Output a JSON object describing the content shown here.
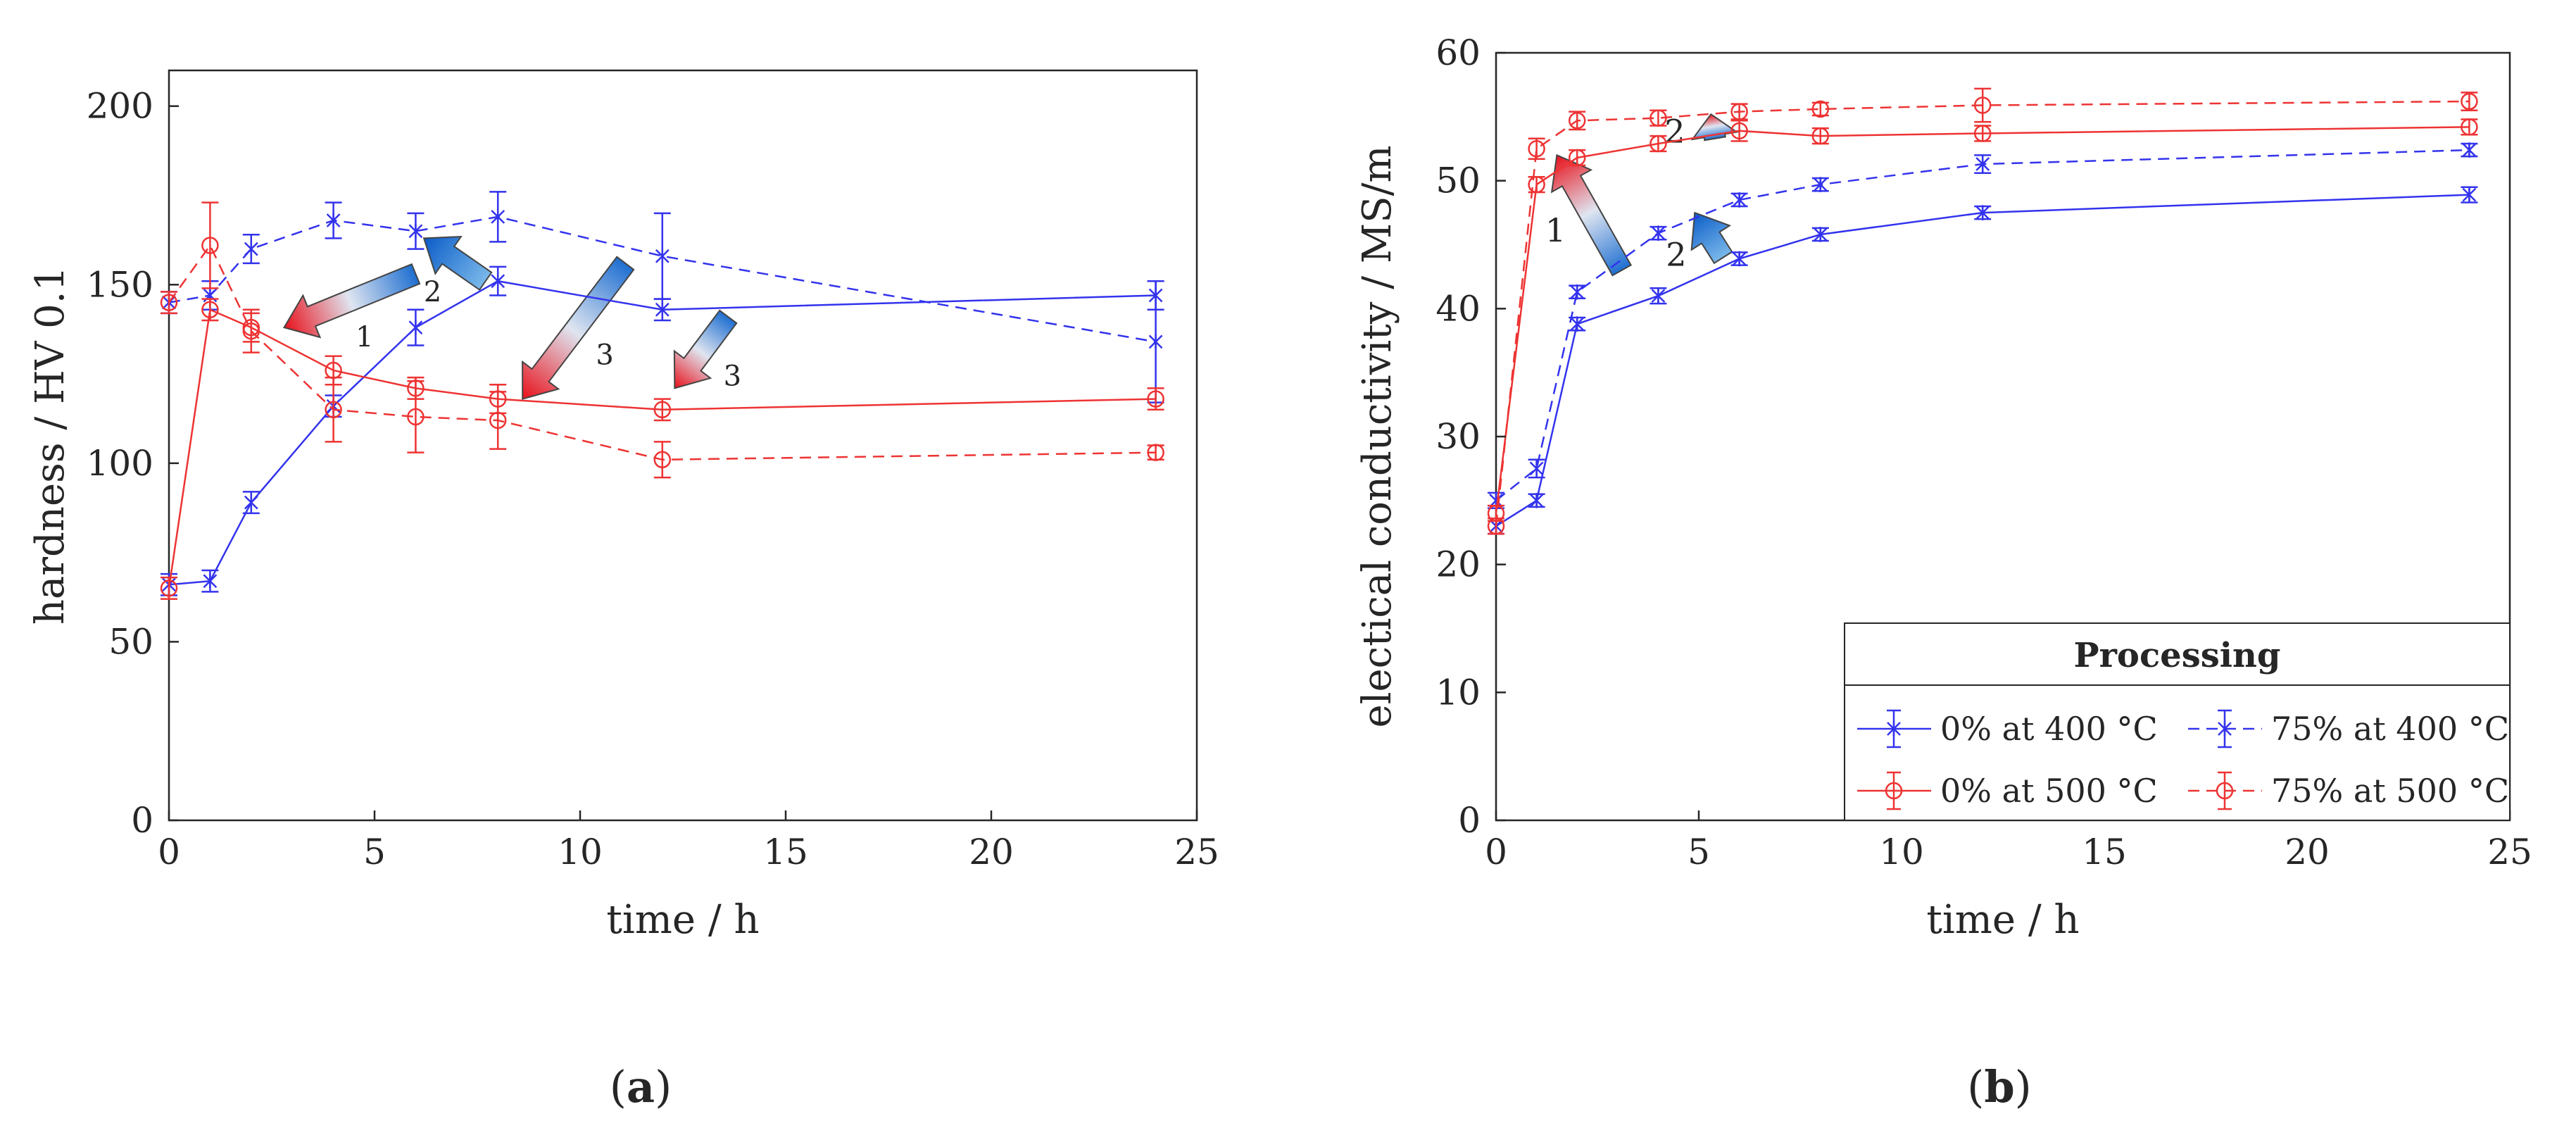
{
  "colors": {
    "blue": "#3333ee",
    "red": "#ee3333",
    "axis": "#262626"
  },
  "chart_data": [
    {
      "panel_label": "a",
      "type": "line",
      "xlabel": "time / h",
      "ylabel": "hardness / HV 0.1",
      "xlim": [
        0,
        25
      ],
      "ylim": [
        0,
        210
      ],
      "xticks": [
        0,
        5,
        10,
        15,
        20,
        25
      ],
      "yticks": [
        0,
        50,
        100,
        150,
        200
      ],
      "grid": false,
      "series": [
        {
          "name": "0% at 400 °C",
          "color": "blue",
          "dashed": false,
          "marker": "star",
          "x": [
            0,
            1,
            2,
            4,
            6,
            8,
            12,
            24
          ],
          "y": [
            66,
            67,
            89,
            116,
            138,
            151,
            143,
            147
          ],
          "err": [
            3,
            3,
            3,
            3,
            5,
            4,
            3,
            4
          ]
        },
        {
          "name": "75% at 400 °C",
          "color": "blue",
          "dashed": true,
          "marker": "star",
          "x": [
            0,
            1,
            2,
            4,
            6,
            8,
            12,
            24
          ],
          "y": [
            145,
            147,
            160,
            168,
            165,
            169,
            158,
            134
          ],
          "err": [
            3,
            4,
            4,
            5,
            5,
            7,
            12,
            17
          ]
        },
        {
          "name": "0% at 500 °C",
          "color": "red",
          "dashed": false,
          "marker": "circle",
          "x": [
            0,
            1,
            2,
            4,
            6,
            8,
            12,
            24
          ],
          "y": [
            65,
            143,
            138,
            126,
            121,
            118,
            115,
            118
          ],
          "err": [
            3,
            3,
            4,
            4,
            3,
            4,
            3,
            3
          ]
        },
        {
          "name": "75% at 500 °C",
          "color": "red",
          "dashed": true,
          "marker": "circle",
          "x": [
            0,
            1,
            2,
            4,
            6,
            8,
            12,
            24
          ],
          "y": [
            145,
            161,
            137,
            115,
            113,
            112,
            101,
            103
          ],
          "err": [
            3,
            12,
            6,
            9,
            10,
            8,
            5,
            2
          ]
        }
      ],
      "annotations": [
        {
          "label": "1",
          "from": [
            6.0,
            153
          ],
          "to": [
            2.8,
            138
          ],
          "style": "red-tip"
        },
        {
          "label": "2",
          "from": [
            7.7,
            151
          ],
          "to": [
            6.2,
            163
          ],
          "style": "blue"
        },
        {
          "label": "3",
          "from": [
            11.1,
            156
          ],
          "to": [
            8.6,
            118
          ],
          "style": "red-tip"
        },
        {
          "label": "3",
          "from": [
            13.6,
            141
          ],
          "to": [
            12.3,
            121
          ],
          "style": "red-tip"
        }
      ]
    },
    {
      "panel_label": "b",
      "type": "line",
      "xlabel": "time / h",
      "ylabel": "electical conductivity / MS/m",
      "xlim": [
        0,
        25
      ],
      "ylim": [
        0,
        60
      ],
      "xticks": [
        0,
        5,
        10,
        15,
        20,
        25
      ],
      "yticks": [
        0,
        10,
        20,
        30,
        40,
        50,
        60
      ],
      "grid": false,
      "series": [
        {
          "name": "0% at 400 °C",
          "color": "blue",
          "dashed": false,
          "marker": "star",
          "x": [
            0,
            1,
            2,
            4,
            6,
            8,
            12,
            24
          ],
          "y": [
            23.0,
            25.0,
            38.8,
            41.0,
            43.9,
            45.8,
            47.5,
            48.9
          ],
          "err": [
            0.6,
            0.5,
            0.5,
            0.6,
            0.5,
            0.5,
            0.5,
            0.6
          ]
        },
        {
          "name": "75% at 400 °C",
          "color": "blue",
          "dashed": true,
          "marker": "star",
          "x": [
            0,
            1,
            2,
            4,
            6,
            8,
            12,
            24
          ],
          "y": [
            25.0,
            27.5,
            41.3,
            45.9,
            48.5,
            49.7,
            51.3,
            52.4
          ],
          "err": [
            0.6,
            0.7,
            0.5,
            0.5,
            0.5,
            0.5,
            0.7,
            0.5
          ]
        },
        {
          "name": "0% at 500 °C",
          "color": "red",
          "dashed": false,
          "marker": "circle",
          "x": [
            0,
            1,
            2,
            4,
            6,
            8,
            12,
            24
          ],
          "y": [
            24.0,
            49.7,
            51.8,
            52.9,
            53.9,
            53.5,
            53.7,
            54.2
          ],
          "err": [
            0.6,
            0.6,
            0.6,
            0.6,
            0.8,
            0.6,
            0.6,
            0.6
          ]
        },
        {
          "name": "75% at 500 °C",
          "color": "red",
          "dashed": true,
          "marker": "circle",
          "x": [
            0,
            1,
            2,
            4,
            6,
            8,
            12,
            24
          ],
          "y": [
            23.0,
            52.5,
            54.7,
            54.9,
            55.4,
            55.6,
            55.9,
            56.2
          ],
          "err": [
            0.6,
            0.8,
            0.7,
            0.6,
            0.6,
            0.5,
            1.3,
            0.7
          ]
        }
      ],
      "annotations": [
        {
          "label": "1",
          "from": [
            3.1,
            43.0
          ],
          "to": [
            1.5,
            52.0
          ],
          "style": "red-tip"
        },
        {
          "label": "2",
          "from": [
            5.6,
            44.0
          ],
          "to": [
            4.9,
            47.5
          ],
          "style": "blue"
        },
        {
          "label": "2",
          "from": [
            5.4,
            53.3
          ],
          "to": [
            5.3,
            55.2
          ],
          "style": "red-tip"
        }
      ],
      "legend": {
        "title": "Processing",
        "placement": "bottom-right",
        "entries": [
          "0% at 400 °C",
          "75% at 400 °C",
          "0% at 500 °C",
          "75% at 500 °C"
        ]
      }
    }
  ]
}
